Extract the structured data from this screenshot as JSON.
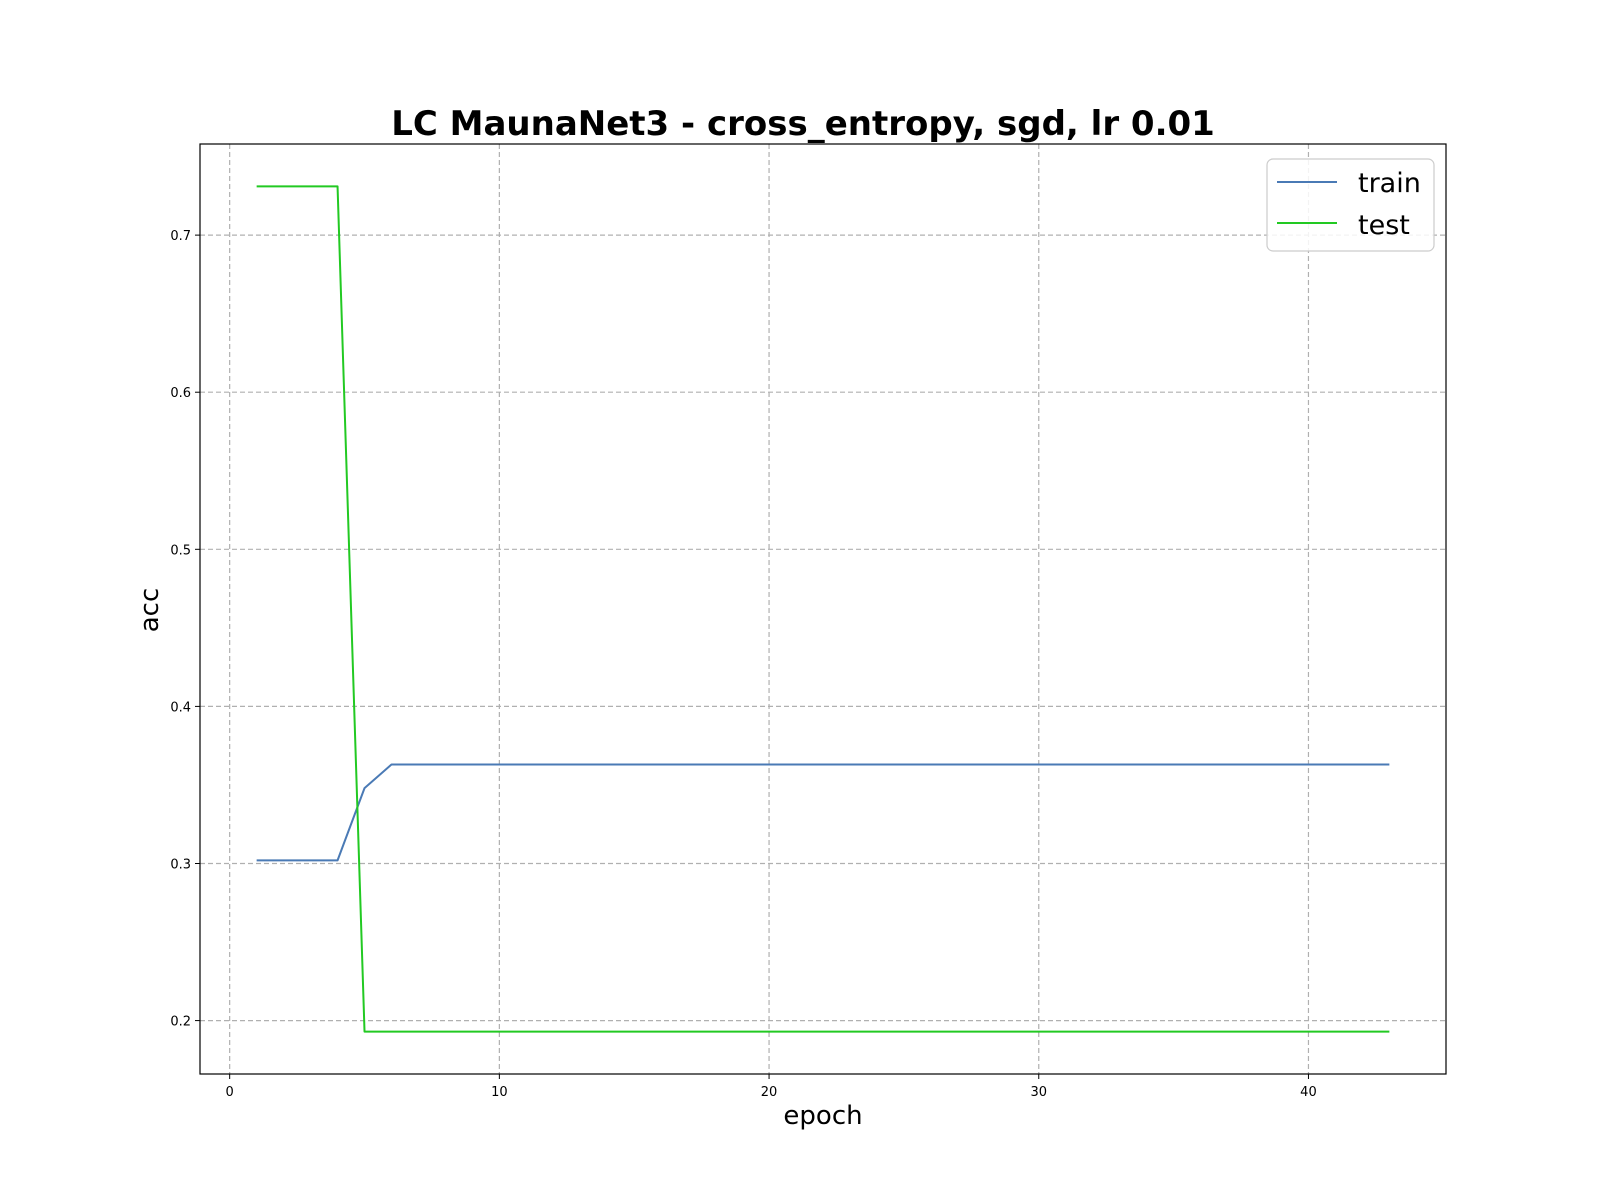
{
  "chart_data": {
    "type": "line",
    "title": "LC MaunaNet3 - cross_entropy, sgd, lr 0.01",
    "xlabel": "epoch",
    "ylabel": "acc",
    "xlim": [
      -1.1,
      45.1
    ],
    "ylim": [
      0.166,
      0.758
    ],
    "xticks": [
      0,
      10,
      20,
      30,
      40
    ],
    "yticks": [
      0.2,
      0.3,
      0.4,
      0.5,
      0.6,
      0.7
    ],
    "grid": true,
    "legend_position": "top-right",
    "series": [
      {
        "name": "train",
        "color": "#4a7ab5",
        "x": [
          1,
          2,
          3,
          4,
          5,
          6,
          7,
          8,
          9,
          10,
          11,
          12,
          13,
          14,
          15,
          16,
          17,
          18,
          19,
          20,
          21,
          22,
          23,
          24,
          25,
          26,
          27,
          28,
          29,
          30,
          31,
          32,
          33,
          34,
          35,
          36,
          37,
          38,
          39,
          40,
          41,
          42,
          43
        ],
        "y": [
          0.302,
          0.302,
          0.302,
          0.302,
          0.348,
          0.363,
          0.363,
          0.363,
          0.363,
          0.363,
          0.363,
          0.363,
          0.363,
          0.363,
          0.363,
          0.363,
          0.363,
          0.363,
          0.363,
          0.363,
          0.363,
          0.363,
          0.363,
          0.363,
          0.363,
          0.363,
          0.363,
          0.363,
          0.363,
          0.363,
          0.363,
          0.363,
          0.363,
          0.363,
          0.363,
          0.363,
          0.363,
          0.363,
          0.363,
          0.363,
          0.363,
          0.363,
          0.363
        ]
      },
      {
        "name": "test",
        "color": "#22c922",
        "x": [
          1,
          2,
          3,
          4,
          5,
          6,
          7,
          8,
          9,
          10,
          11,
          12,
          13,
          14,
          15,
          16,
          17,
          18,
          19,
          20,
          21,
          22,
          23,
          24,
          25,
          26,
          27,
          28,
          29,
          30,
          31,
          32,
          33,
          34,
          35,
          36,
          37,
          38,
          39,
          40,
          41,
          42,
          43
        ],
        "y": [
          0.731,
          0.731,
          0.731,
          0.731,
          0.193,
          0.193,
          0.193,
          0.193,
          0.193,
          0.193,
          0.193,
          0.193,
          0.193,
          0.193,
          0.193,
          0.193,
          0.193,
          0.193,
          0.193,
          0.193,
          0.193,
          0.193,
          0.193,
          0.193,
          0.193,
          0.193,
          0.193,
          0.193,
          0.193,
          0.193,
          0.193,
          0.193,
          0.193,
          0.193,
          0.193,
          0.193,
          0.193,
          0.193,
          0.193,
          0.193,
          0.193,
          0.193,
          0.193
        ]
      }
    ]
  }
}
